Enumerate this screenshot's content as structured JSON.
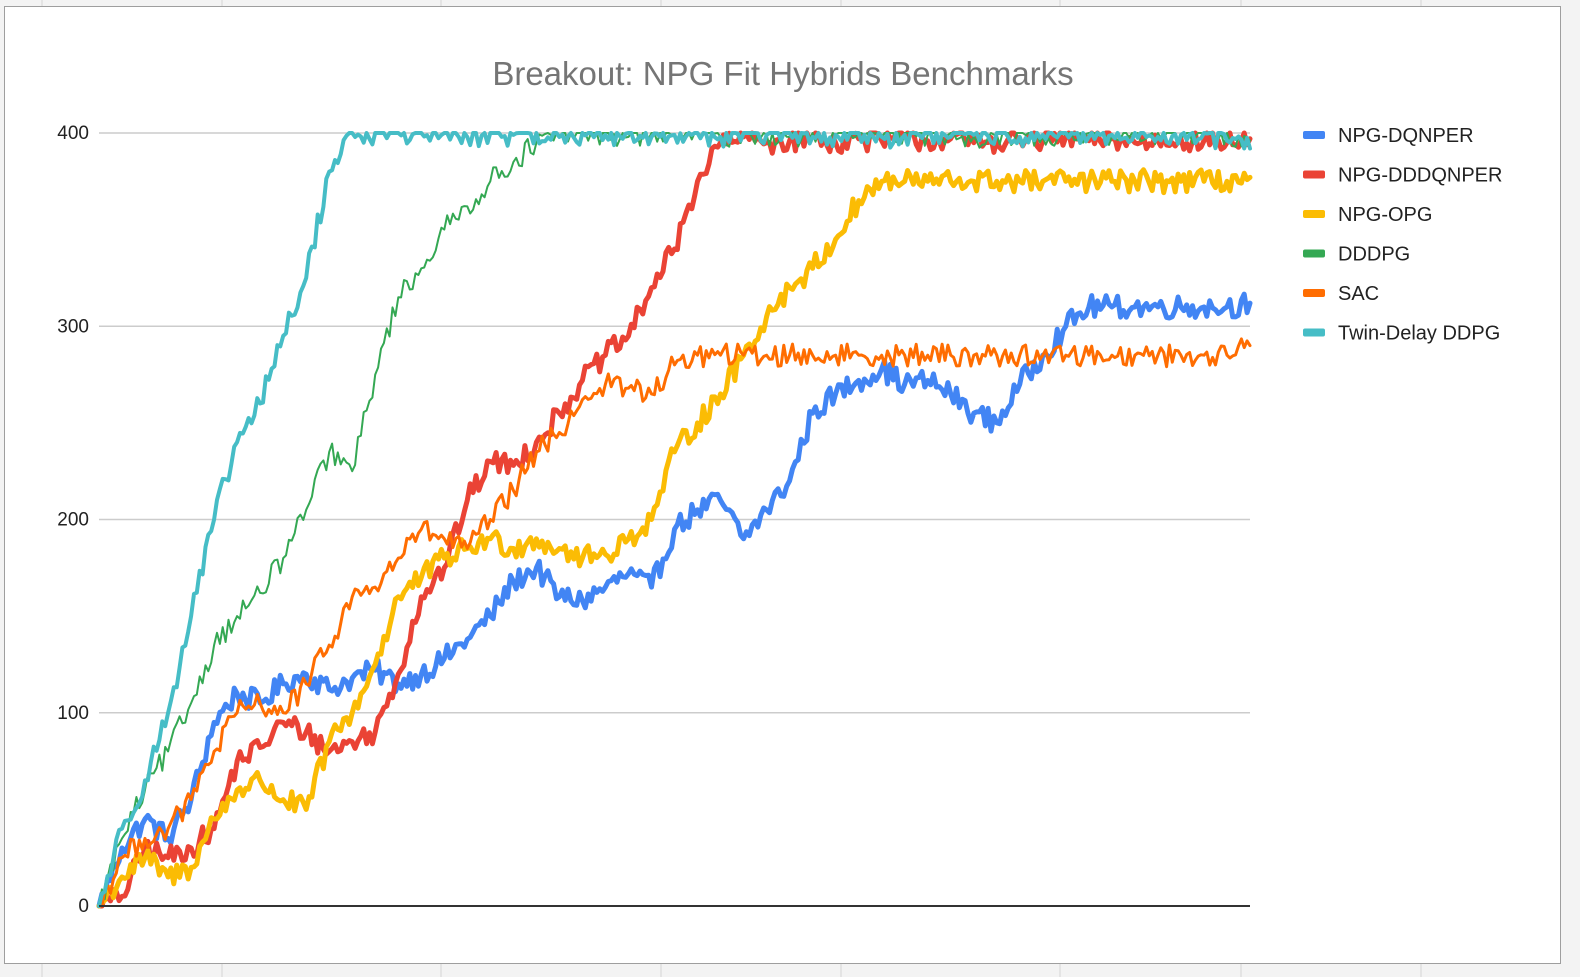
{
  "chart_data": {
    "type": "line",
    "title": "Breakout: NPG Fit Hybrids Benchmarks",
    "xlabel": "",
    "ylabel": "",
    "x_range": [
      0,
      1000
    ],
    "ylim": [
      0,
      400
    ],
    "y_ticks": [
      0,
      100,
      200,
      300,
      400
    ],
    "grid": true,
    "legend_position": "right",
    "series": [
      {
        "name": "NPG-DQNPER",
        "color": "#4285f4",
        "width": 5,
        "x": [
          0,
          20,
          40,
          60,
          80,
          100,
          120,
          140,
          160,
          180,
          200,
          220,
          240,
          260,
          280,
          300,
          320,
          340,
          360,
          380,
          400,
          420,
          440,
          460,
          480,
          500,
          520,
          540,
          560,
          580,
          600,
          620,
          640,
          660,
          680,
          700,
          720,
          740,
          760,
          780,
          800,
          820,
          840,
          860,
          880,
          900,
          920,
          940,
          960,
          980,
          1000
        ],
        "y": [
          0,
          30,
          45,
          35,
          55,
          95,
          110,
          105,
          115,
          120,
          112,
          118,
          122,
          115,
          120,
          128,
          138,
          150,
          168,
          175,
          160,
          158,
          165,
          172,
          165,
          195,
          205,
          210,
          190,
          205,
          220,
          255,
          265,
          272,
          278,
          270,
          272,
          265,
          255,
          250,
          270,
          285,
          300,
          310,
          310,
          310,
          310,
          310,
          310,
          310,
          312
        ]
      },
      {
        "name": "NPG-DDDQNPER",
        "color": "#ea4335",
        "width": 5,
        "x": [
          0,
          20,
          40,
          60,
          80,
          100,
          120,
          140,
          160,
          180,
          200,
          220,
          240,
          260,
          280,
          300,
          320,
          340,
          360,
          380,
          400,
          420,
          440,
          460,
          480,
          500,
          520,
          540,
          560,
          580,
          600,
          620,
          640,
          660,
          680,
          700,
          720,
          740,
          760,
          780,
          800,
          820,
          840,
          860,
          880,
          900,
          920,
          940,
          960,
          980,
          1000
        ],
        "y": [
          0,
          5,
          30,
          25,
          30,
          40,
          75,
          82,
          95,
          90,
          80,
          85,
          90,
          120,
          160,
          175,
          210,
          230,
          228,
          240,
          255,
          272,
          285,
          295,
          320,
          340,
          375,
          395,
          398,
          395,
          396,
          398,
          395,
          397,
          396,
          398,
          396,
          397,
          395,
          396,
          397,
          396,
          398,
          396,
          397,
          395,
          396,
          397,
          396,
          395,
          397
        ]
      },
      {
        "name": "NPG-OPG",
        "color": "#fbbc04",
        "width": 5,
        "x": [
          0,
          20,
          40,
          60,
          80,
          100,
          120,
          140,
          160,
          180,
          200,
          220,
          240,
          260,
          280,
          300,
          320,
          340,
          360,
          380,
          400,
          420,
          440,
          460,
          480,
          500,
          520,
          540,
          560,
          580,
          600,
          620,
          640,
          660,
          680,
          700,
          720,
          740,
          760,
          780,
          800,
          820,
          840,
          860,
          880,
          900,
          920,
          940,
          960,
          980,
          1000
        ],
        "y": [
          0,
          15,
          25,
          15,
          20,
          45,
          60,
          65,
          55,
          50,
          85,
          100,
          125,
          160,
          170,
          180,
          185,
          190,
          185,
          190,
          185,
          180,
          182,
          190,
          200,
          235,
          250,
          265,
          285,
          305,
          320,
          330,
          345,
          365,
          375,
          375,
          375,
          375,
          375,
          375,
          375,
          375,
          375,
          375,
          375,
          375,
          375,
          375,
          375,
          375,
          377
        ]
      },
      {
        "name": "DDDPG",
        "color": "#34a853",
        "width": 2,
        "x": [
          0,
          20,
          40,
          60,
          80,
          100,
          120,
          140,
          160,
          180,
          200,
          220,
          240,
          260,
          280,
          300,
          320,
          340,
          360,
          380,
          400,
          420,
          440,
          460,
          480,
          500,
          520,
          540,
          560,
          580,
          600,
          620,
          640,
          660,
          680,
          700,
          720,
          740,
          760,
          780,
          800,
          820,
          840,
          860,
          880,
          900,
          920,
          940,
          960,
          980,
          1000
        ],
        "y": [
          0,
          35,
          60,
          80,
          105,
          135,
          150,
          162,
          180,
          205,
          235,
          225,
          275,
          315,
          330,
          350,
          362,
          375,
          385,
          395,
          398,
          400,
          400,
          398,
          400,
          399,
          400,
          398,
          400,
          399,
          398,
          400,
          399,
          400,
          398,
          400,
          399,
          400,
          398,
          399,
          400,
          398,
          399,
          400,
          398,
          399,
          400,
          398,
          399,
          400,
          396
        ]
      },
      {
        "name": "SAC",
        "color": "#ff6d01",
        "width": 3,
        "x": [
          0,
          20,
          40,
          60,
          80,
          100,
          120,
          140,
          160,
          180,
          200,
          220,
          240,
          260,
          280,
          300,
          320,
          340,
          360,
          380,
          400,
          420,
          440,
          460,
          480,
          500,
          520,
          540,
          560,
          580,
          600,
          620,
          640,
          660,
          680,
          700,
          720,
          740,
          760,
          780,
          800,
          820,
          840,
          860,
          880,
          900,
          920,
          940,
          960,
          980,
          1000
        ],
        "y": [
          0,
          25,
          35,
          40,
          55,
          80,
          100,
          105,
          100,
          115,
          135,
          160,
          165,
          180,
          195,
          190,
          185,
          200,
          215,
          235,
          245,
          262,
          270,
          268,
          265,
          280,
          285,
          285,
          285,
          285,
          285,
          285,
          285,
          285,
          285,
          285,
          285,
          285,
          285,
          285,
          285,
          285,
          285,
          285,
          285,
          285,
          285,
          285,
          285,
          285,
          290
        ]
      },
      {
        "name": "Twin-Delay DDPG",
        "color": "#46bdc6",
        "width": 4,
        "x": [
          0,
          20,
          40,
          60,
          80,
          100,
          120,
          140,
          160,
          180,
          200,
          220,
          240,
          260,
          280,
          300,
          320,
          340,
          360,
          380,
          400,
          420,
          440,
          460,
          480,
          500,
          520,
          540,
          560,
          580,
          600,
          620,
          640,
          660,
          680,
          700,
          720,
          740,
          760,
          780,
          800,
          820,
          840,
          860,
          880,
          900,
          920,
          940,
          960,
          980,
          1000
        ],
        "y": [
          0,
          40,
          65,
          100,
          150,
          200,
          240,
          260,
          295,
          325,
          380,
          400,
          400,
          400,
          400,
          400,
          398,
          400,
          399,
          400,
          398,
          400,
          399,
          400,
          398,
          399,
          400,
          398,
          400,
          399,
          400,
          398,
          399,
          400,
          398,
          399,
          400,
          398,
          399,
          400,
          398,
          399,
          400,
          398,
          399,
          400,
          398,
          399,
          400,
          396,
          392
        ]
      }
    ]
  }
}
